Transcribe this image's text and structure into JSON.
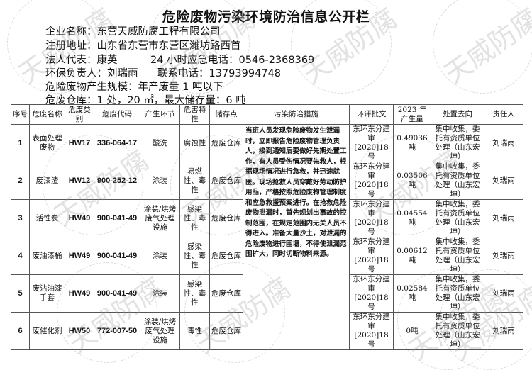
{
  "title": "危险废物污染环境防治信息公开栏",
  "info": {
    "company": "企业名称：东营天威防腐工程有限公司",
    "address": "注册地址：山东省东营市东营区潍坊路西首",
    "legal": "法人代表：康英",
    "hotline": "24 小时应急电话：0546-2368369",
    "env_person": "环保负责人：刘瑞雨",
    "contact": "联系电话：13793994748",
    "scale": "危险废物产生规模：年产废量 1 吨以下",
    "warehouse": "危废仓库：1 处，20 ㎡，最大储存量：6 吨"
  },
  "watermark": "天威防腐",
  "table": {
    "headers": [
      "序号",
      "危废名称",
      "危废类别",
      "危废代码",
      "产生环节",
      "危害特性",
      "储存点",
      "污染防治措施",
      "环评批文",
      "2023 年产生量",
      "处置去向",
      "责任人"
    ],
    "measures": "当班人员发现危险废物发生泄漏时，立即报告危险废物管理负责人，接到通知后要做好先期处置工作，有人员受伤情况要先救人，根据现场情况进行急救，并迅速就医。现场抢救人员穿戴好劳动防护用品，严格按照危险废物管理制度和应急救援预案进行。在抢救危险废物泄漏时，首先规划出事故的控制范围，在规定范围内无关人员不得进入。准备大量沙土，对泄漏的危险废物进行围堰，不得使泄漏范围扩大，同时切断物料来源。",
    "rows": [
      {
        "no": "1",
        "name": "表面处理废物",
        "cat": "HW17",
        "code": "336-064-17",
        "stage": "酸洗",
        "hazard": "腐蚀性",
        "store": "危废仓库",
        "approval": "东环东分建审[2020]18号",
        "amount": "0.49036吨",
        "disposal": "集中收集，委托有资质单位处理（山东宏坤）",
        "owner": "刘瑞雨"
      },
      {
        "no": "2",
        "name": "废漆渣",
        "cat": "HW12",
        "code": "900-252-12",
        "stage": "涂装",
        "hazard": "易燃性、毒性",
        "store": "危废仓库",
        "approval": "东环东分建审[2020]18号",
        "amount": "0.03506吨",
        "disposal": "集中收集，委托有资质单位处理（山东宏坤）",
        "owner": "刘瑞雨"
      },
      {
        "no": "3",
        "name": "活性炭",
        "cat": "HW49",
        "code": "900-041-49",
        "stage": "涂装/烘烤废气处理设施",
        "hazard": "感染性、毒性",
        "store": "危废仓库",
        "approval": "东环东分建审[2020]18号",
        "amount": "0.04554吨",
        "disposal": "集中收集，委托有资质单位处理（山东宏坤）",
        "owner": "刘瑞雨"
      },
      {
        "no": "4",
        "name": "废油漆桶",
        "cat": "HW49",
        "code": "900-041-49",
        "stage": "涂装",
        "hazard": "感染性、毒性",
        "store": "危废仓库",
        "approval": "东环东分建审[2020]18号",
        "amount": "0.00612吨",
        "disposal": "集中收集，委托有资质单位处理（山东宏坤）",
        "owner": "刘瑞雨"
      },
      {
        "no": "5",
        "name": "废沾油漆手套",
        "cat": "HW49",
        "code": "900-041-49",
        "stage": "涂装",
        "hazard": "感染性、毒性",
        "store": "危废仓库",
        "approval": "东环东分建审[2020]18号",
        "amount": "0.02584吨",
        "disposal": "集中收集，委托有资质单位处理（山东宏坤）",
        "owner": "刘瑞雨"
      },
      {
        "no": "6",
        "name": "废催化剂",
        "cat": "HW50",
        "code": "772-007-50",
        "stage": "涂装/烘烤废气处理设施",
        "hazard": "毒性",
        "store": "危废仓库",
        "approval": "东环东分建审[2020]18号",
        "amount": "0吨",
        "disposal": "集中收集，委托有资质单位处理（山东宏坤）",
        "owner": "刘瑞雨"
      }
    ]
  }
}
